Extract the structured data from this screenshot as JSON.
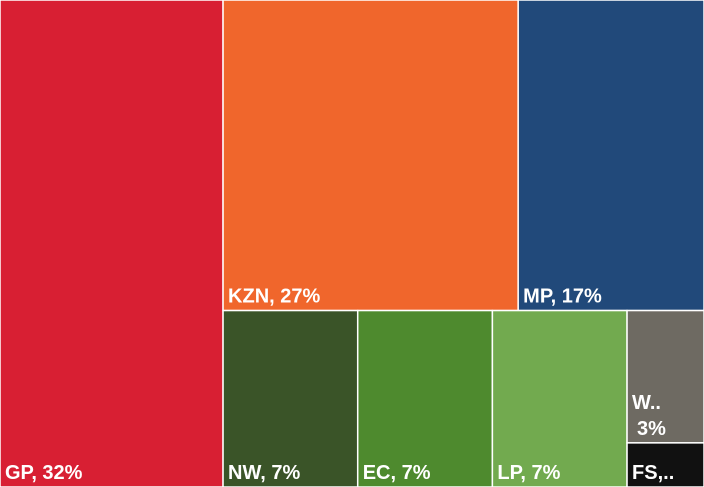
{
  "chart_data": {
    "type": "treemap",
    "labels": [
      [
        "GP, 32%"
      ],
      [
        "KZN, 27%"
      ],
      [
        "MP, 17%"
      ],
      [
        "NW, 7%"
      ],
      [
        "EC, 7%"
      ],
      [
        "LP, 7%"
      ],
      [
        "W..",
        "3%"
      ],
      [
        "FS,.."
      ]
    ],
    "values": [
      32,
      27,
      17,
      7,
      7,
      7,
      3,
      1
    ],
    "colors": [
      "#d81f33",
      "#f0662c",
      "#21497a",
      "#3a5428",
      "#4e8a2e",
      "#72aa4f",
      "#6e6a62",
      "#111111"
    ]
  }
}
